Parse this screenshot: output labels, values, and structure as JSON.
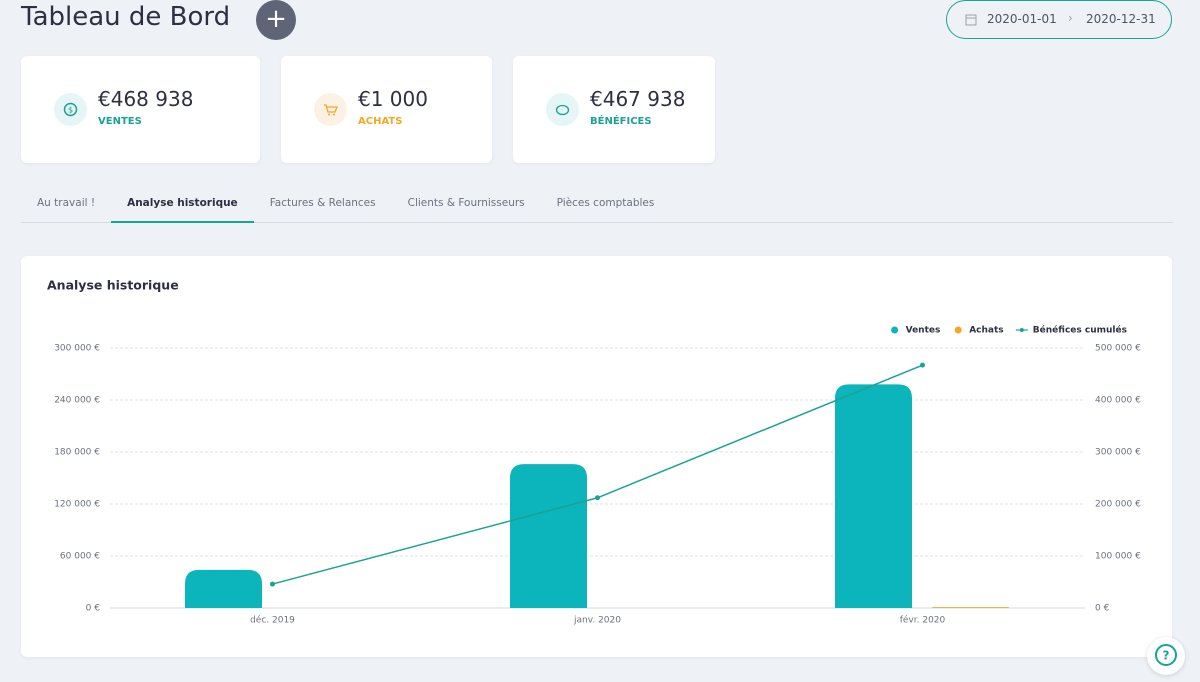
{
  "header": {
    "title": "Tableau de Bord",
    "date_start": "2020-01-01",
    "date_end": "2020-12-31"
  },
  "stats": [
    {
      "value": "€468 938",
      "label": "VENTES"
    },
    {
      "value": "€1 000",
      "label": "ACHATS"
    },
    {
      "value": "€467 938",
      "label": "BÉNÉFICES"
    }
  ],
  "tabs": [
    "Au travail !",
    "Analyse historique",
    "Factures & Relances",
    "Clients & Fournisseurs",
    "Pièces comptables"
  ],
  "chart_data": {
    "type": "bar",
    "title": "Analyse historique",
    "categories": [
      "déc. 2019",
      "janv. 2020",
      "févr. 2020"
    ],
    "series": [
      {
        "name": "Ventes",
        "color": "#0bb5bb",
        "values": [
          44000,
          166000,
          258000
        ]
      },
      {
        "name": "Achats",
        "color": "#f5a623",
        "values": [
          0,
          0,
          1000
        ]
      },
      {
        "name": "Bénéfices cumulés",
        "type": "line",
        "axis": "y2",
        "color": "#1aa394",
        "values": [
          46000,
          212000,
          467000
        ]
      }
    ],
    "ylim": [
      0,
      300000
    ],
    "yticks": [
      {
        "value": 0,
        "label": "0 €"
      },
      {
        "value": 60000,
        "label": "60 000 €"
      },
      {
        "value": 120000,
        "label": "120 000 €"
      },
      {
        "value": 180000,
        "label": "180 000 €"
      },
      {
        "value": 240000,
        "label": "240 000 €"
      },
      {
        "value": 300000,
        "label": "300 000 €"
      }
    ],
    "y2lim": [
      0,
      500000
    ],
    "y2ticks": [
      {
        "value": 0,
        "label": "0 €"
      },
      {
        "value": 100000,
        "label": "100 000 €"
      },
      {
        "value": 200000,
        "label": "200 000 €"
      },
      {
        "value": 300000,
        "label": "300 000 €"
      },
      {
        "value": 400000,
        "label": "400 000 €"
      },
      {
        "value": 500000,
        "label": "500 000 €"
      }
    ],
    "grid": true,
    "legend": "top-right"
  }
}
